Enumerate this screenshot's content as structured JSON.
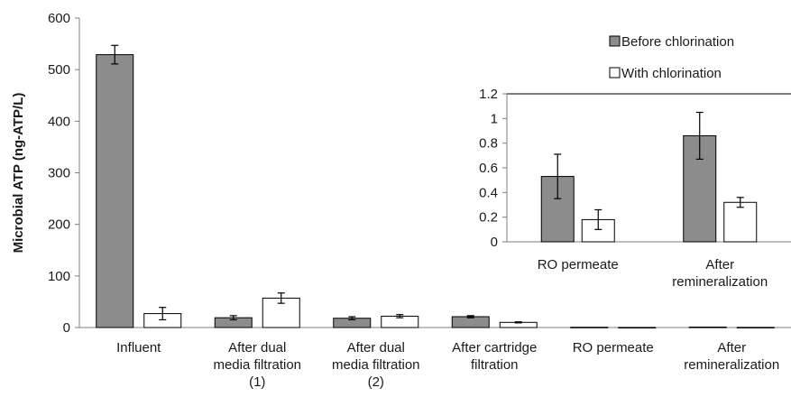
{
  "chart_data": [
    {
      "type": "bar",
      "title": "",
      "xlabel": "",
      "ylabel": "Microbial ATP (ng-ATP/L)",
      "ylim": [
        0,
        600
      ],
      "yticks": [
        0,
        100,
        200,
        300,
        400,
        500,
        600
      ],
      "grid": false,
      "legend": "top-right",
      "categories": [
        [
          "Influent"
        ],
        [
          "After dual",
          "media filtration",
          "(1)"
        ],
        [
          "After dual",
          "media filtration",
          "(2)"
        ],
        [
          "After cartridge",
          "filtration"
        ],
        [
          "RO permeate"
        ],
        [
          "After",
          "remineralization"
        ]
      ],
      "series": [
        {
          "name": "Before chlorination",
          "color": "#8c8c8c",
          "values": [
            529,
            19,
            18,
            21,
            0.53,
            0.86
          ],
          "errors": [
            18,
            4,
            3,
            2,
            0.18,
            0.19
          ]
        },
        {
          "name": "With chlorination",
          "color": "#ffffff",
          "values": [
            27,
            57,
            22,
            10,
            0.18,
            0.32
          ],
          "errors": [
            12,
            10,
            3,
            1,
            0.08,
            0.04
          ]
        }
      ]
    },
    {
      "type": "bar",
      "title": "",
      "xlabel": "",
      "ylabel": "",
      "ylim": [
        0,
        1.2
      ],
      "yticks": [
        "0",
        "0.2",
        "0.4",
        "0.6",
        "0.8",
        "1",
        "1.2"
      ],
      "grid": false,
      "categories": [
        [
          "RO permeate"
        ],
        [
          "After",
          "remineralization"
        ]
      ],
      "series": [
        {
          "name": "Before chlorination",
          "color": "#8c8c8c",
          "values": [
            0.53,
            0.86
          ],
          "errors": [
            0.18,
            0.19
          ]
        },
        {
          "name": "With chlorination",
          "color": "#ffffff",
          "values": [
            0.18,
            0.32
          ],
          "errors": [
            0.08,
            0.04
          ]
        }
      ]
    }
  ]
}
